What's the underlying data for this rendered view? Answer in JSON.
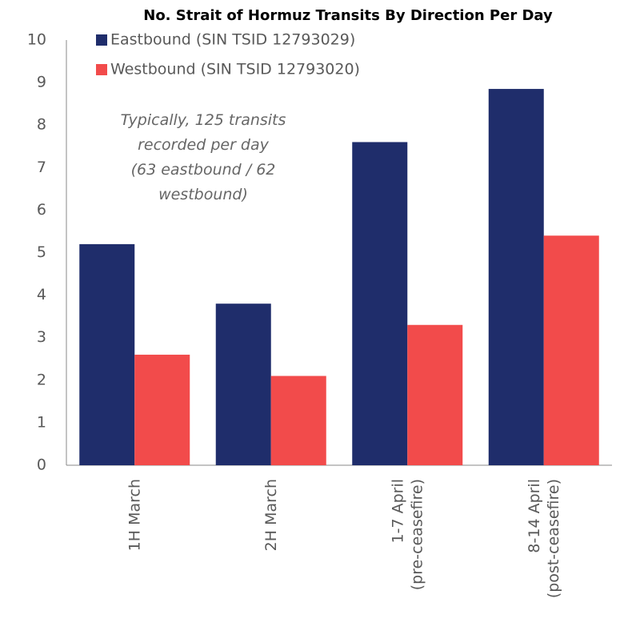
{
  "chart_data": {
    "type": "bar",
    "title": "No. Strait of Hormuz Transits By Direction Per Day",
    "annotation": "Typically, 125 transits\nrecorded per day\n(63 eastbound / 62\nwestbound)",
    "categories": [
      "1H March",
      "2H March",
      "1-7 April\n(pre-ceasefire)",
      "8-14 April\n(post-ceasefire)"
    ],
    "series": [
      {
        "name": "Eastbound (SIN TSID 12793029)",
        "color": "#1f2d6b",
        "values": [
          5.2,
          3.8,
          7.6,
          8.85
        ]
      },
      {
        "name": "Westbound (SIN TSID 12793020)",
        "color": "#f24b4b",
        "values": [
          2.6,
          2.1,
          3.3,
          5.4
        ]
      }
    ],
    "ylim": [
      0,
      10
    ],
    "yticks": [
      0,
      1,
      2,
      3,
      4,
      5,
      6,
      7,
      8,
      9,
      10
    ],
    "grid": false
  }
}
